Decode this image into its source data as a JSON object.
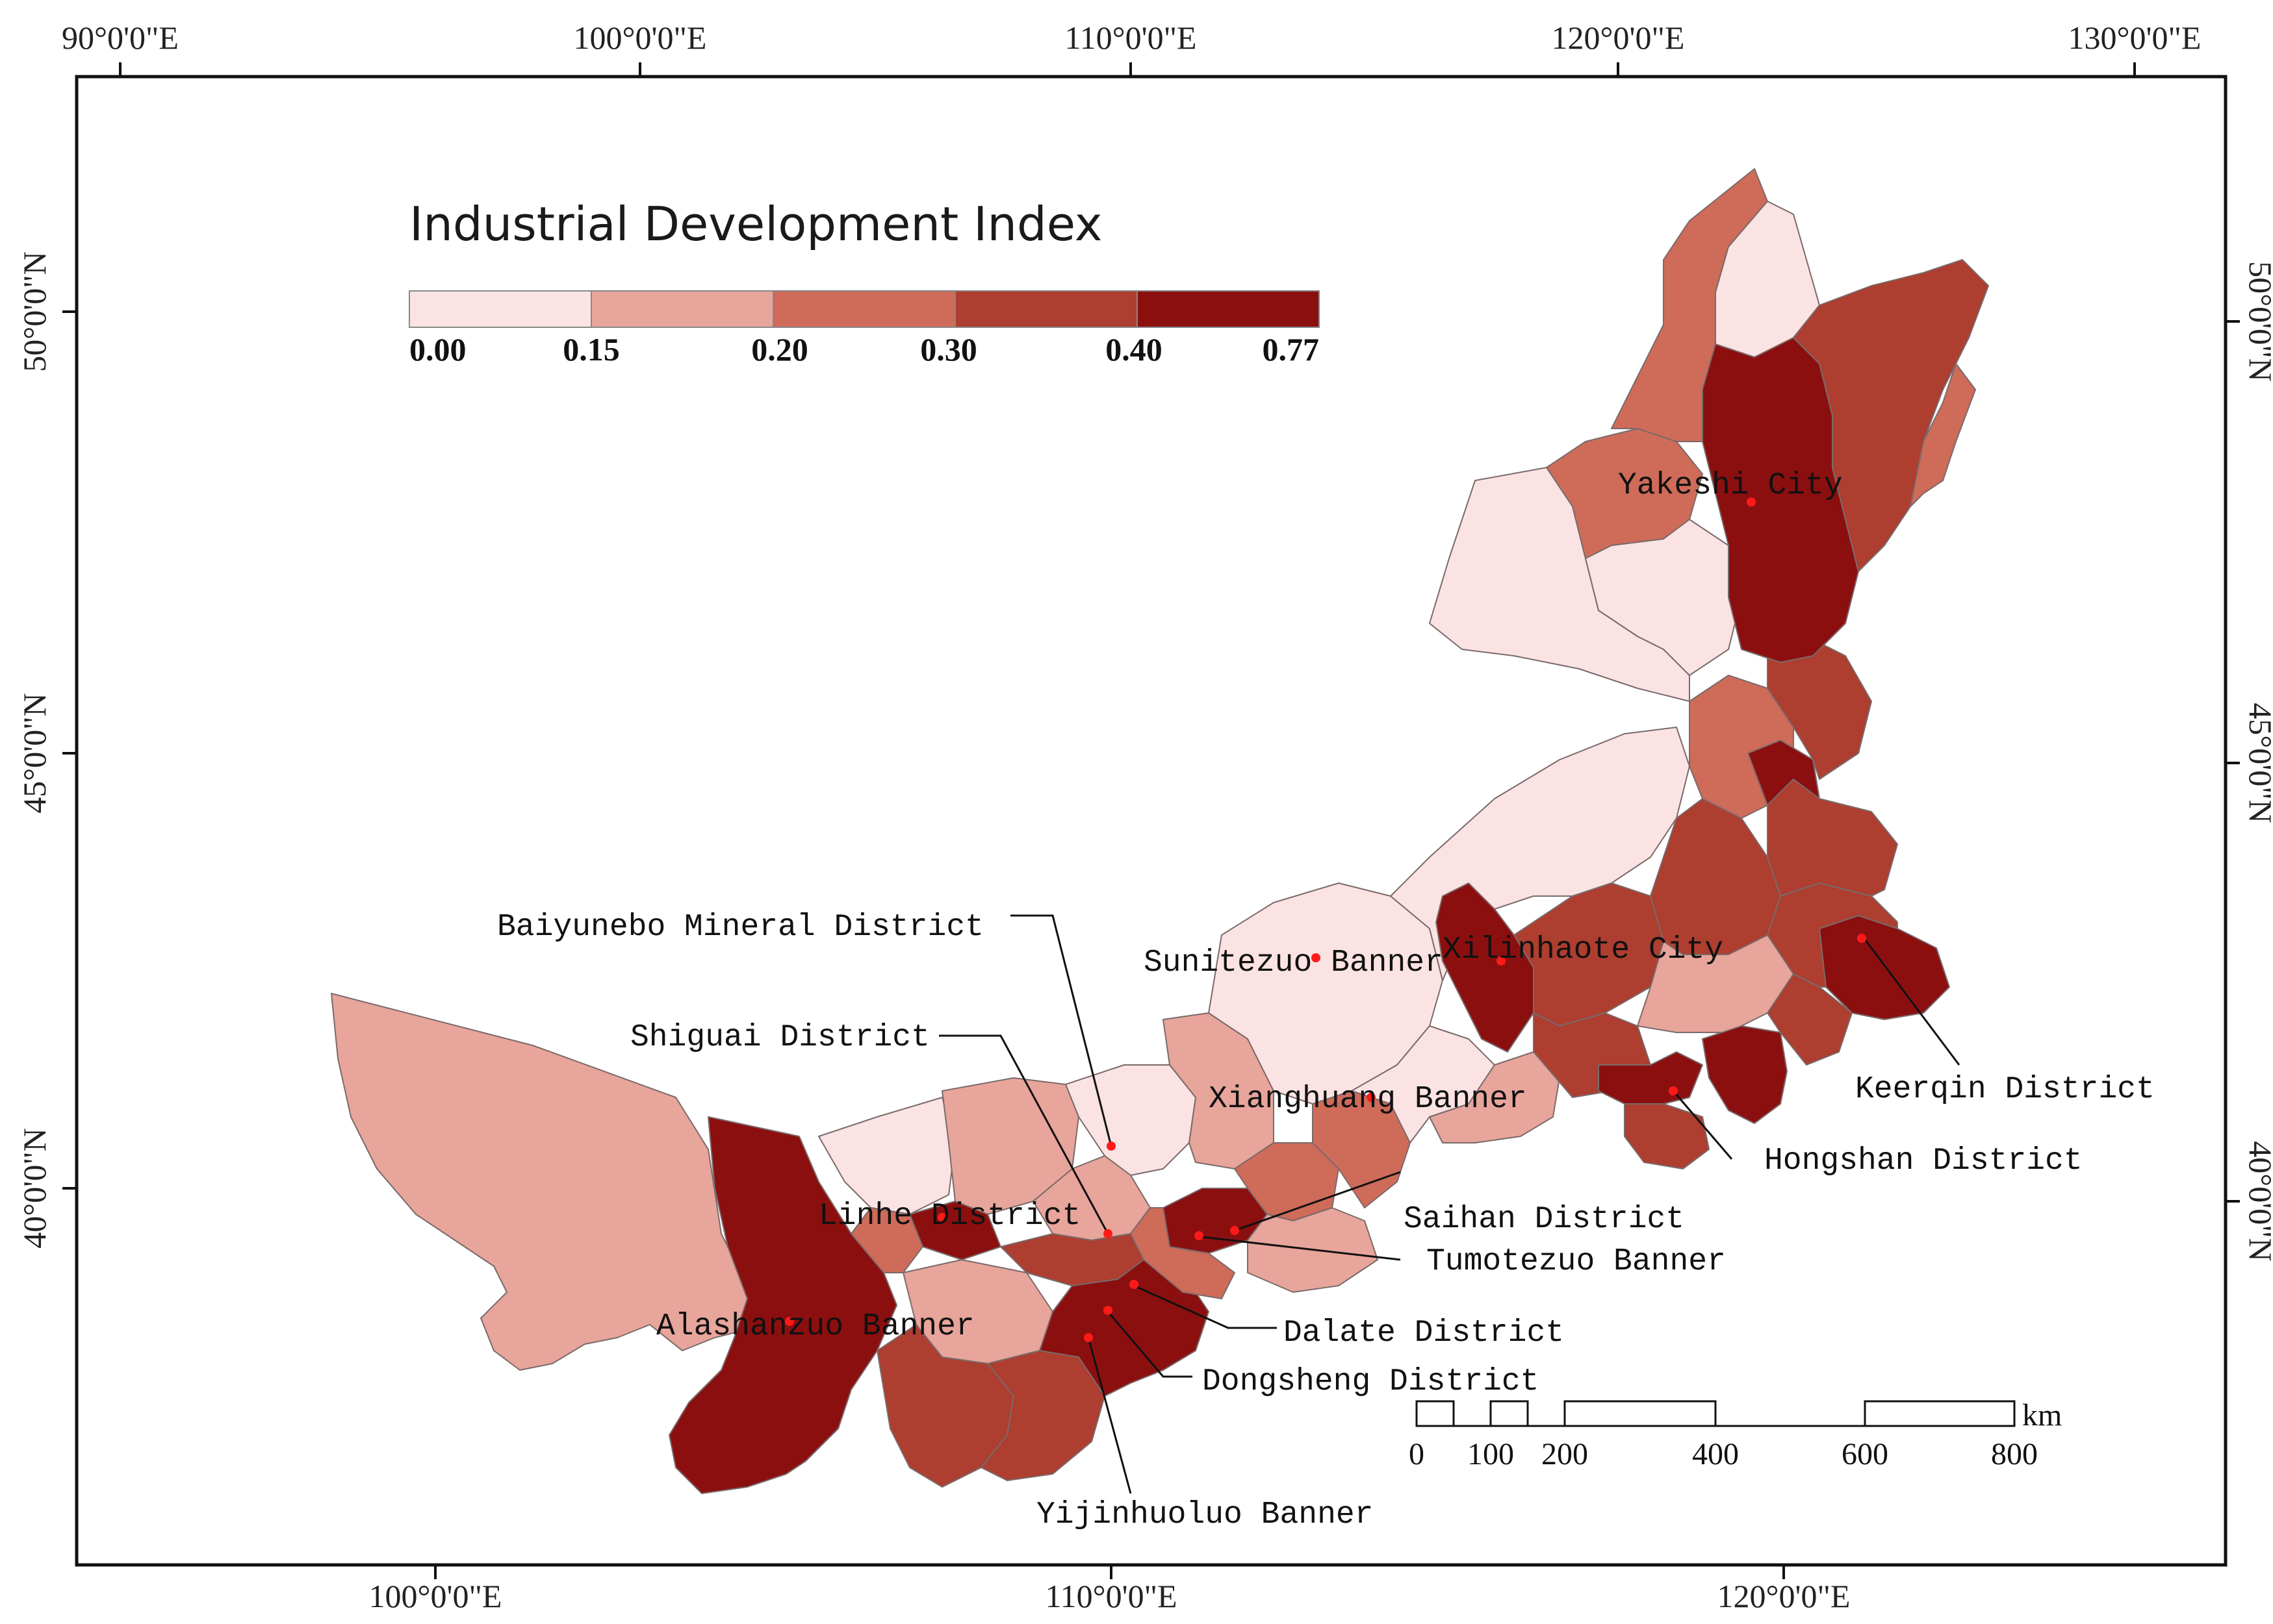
{
  "legend": {
    "title": "Industrial Development Index",
    "breaks": [
      "0.00",
      "0.15",
      "0.20",
      "0.30",
      "0.40",
      "0.77"
    ],
    "colors": [
      "#fbe3e3",
      "#e8a59b",
      "#cf6b59",
      "#ad3e30",
      "#8c0f10"
    ]
  },
  "graticule": {
    "top_lon": [
      "90°0'0\"E",
      "100°0'0\"E",
      "110°0'0\"E",
      "120°0'0\"E",
      "130°0'0\"E"
    ],
    "bottom_lon": [
      "100°0'0\"E",
      "110°0'0\"E",
      "120°0'0\"E"
    ],
    "left_lat": [
      "50°0'0\"N",
      "45°0'0\"N",
      "40°0'0\"N"
    ],
    "right_lat": [
      "50°0'0\"N",
      "45°0'0\"N",
      "40°0'0\"N"
    ]
  },
  "places": [
    {
      "name": "Yakeshi City",
      "class": 4
    },
    {
      "name": "Xilinhaote City",
      "class": 4
    },
    {
      "name": "Sunitezuo Banner",
      "class": 0
    },
    {
      "name": "Baiyunebo Mineral District",
      "class": 0
    },
    {
      "name": "Xianghuang Banner",
      "class": 0
    },
    {
      "name": "Shiguai District",
      "class": 4
    },
    {
      "name": "Linhe District",
      "class": 4
    },
    {
      "name": "Keerqin District",
      "class": 4
    },
    {
      "name": "Hongshan District",
      "class": 4
    },
    {
      "name": "Saihan District",
      "class": 4
    },
    {
      "name": "Tumotezuo Banner",
      "class": 4
    },
    {
      "name": "Alashanzuo Banner",
      "class": 4
    },
    {
      "name": "Dalate District",
      "class": 4
    },
    {
      "name": "Dongsheng District",
      "class": 4
    },
    {
      "name": "Yijinhuoluo Banner",
      "class": 4
    }
  ],
  "scale_bar": {
    "unit": "km",
    "labels": [
      "0",
      "100",
      "200",
      "400",
      "600",
      "800"
    ]
  },
  "colors": {
    "frame": "#111111",
    "leader_line": "#111111",
    "place_dot": "#ff1a1a",
    "region_border": "#7a6a6a"
  }
}
